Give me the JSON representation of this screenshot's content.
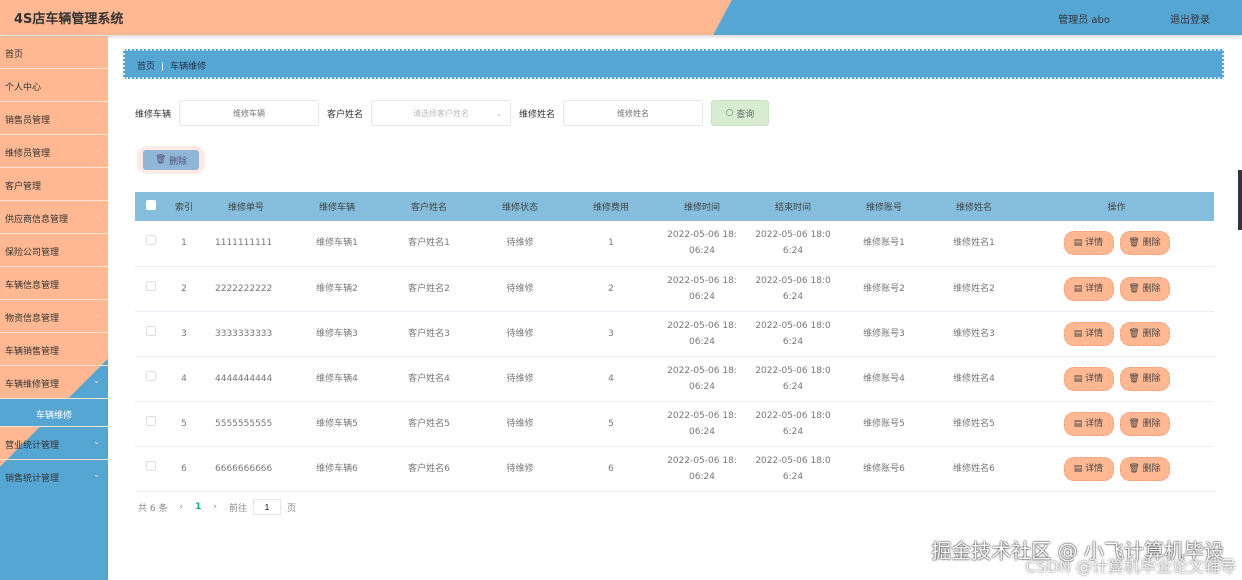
{
  "header": {
    "title": "4S店车辆管理系统",
    "user": "管理员 abo",
    "logout": "退出登录"
  },
  "sidebar": {
    "items": [
      {
        "label": "首页",
        "chevron": false
      },
      {
        "label": "个人中心",
        "chevron": true
      },
      {
        "label": "销售员管理",
        "chevron": true
      },
      {
        "label": "维修员管理",
        "chevron": true
      },
      {
        "label": "客户管理",
        "chevron": true
      },
      {
        "label": "供应商信息管理",
        "chevron": true
      },
      {
        "label": "保险公司管理",
        "chevron": true
      },
      {
        "label": "车辆信息管理",
        "chevron": true
      },
      {
        "label": "物资信息管理",
        "chevron": true
      },
      {
        "label": "车辆销售管理",
        "chevron": true
      },
      {
        "label": "车辆维修管理",
        "chevron": true
      }
    ],
    "active_sub": "车辆维修",
    "items_after": [
      {
        "label": "营业统计管理"
      },
      {
        "label": "销售统计管理"
      }
    ]
  },
  "breadcrumb": {
    "home": "首页",
    "current": "车辆维修"
  },
  "search": {
    "vehicle_label": "维修车辆",
    "vehicle_placeholder": "维修车辆",
    "customer_label": "客户姓名",
    "customer_placeholder": "请选择客户姓名",
    "repair_name_label": "维修姓名",
    "repair_name_placeholder": "维修姓名",
    "query": "查询"
  },
  "toolbar": {
    "delete": "删除"
  },
  "table": {
    "headers": [
      "索引",
      "维修单号",
      "维修车辆",
      "客户姓名",
      "维修状态",
      "维修费用",
      "维修时间",
      "结束时间",
      "维修账号",
      "维修姓名",
      "操作"
    ],
    "rows": [
      [
        "1",
        "1111111111",
        "维修车辆1",
        "客户姓名1",
        "待维修",
        "1",
        "2022-05-06 18:06:24",
        "2022-05-06 18:06:24",
        "维修账号1",
        "维修姓名1"
      ],
      [
        "2",
        "2222222222",
        "维修车辆2",
        "客户姓名2",
        "待维修",
        "2",
        "2022-05-06 18:06:24",
        "2022-05-06 18:06:24",
        "维修账号2",
        "维修姓名2"
      ],
      [
        "3",
        "3333333333",
        "维修车辆3",
        "客户姓名3",
        "待维修",
        "3",
        "2022-05-06 18:06:24",
        "2022-05-06 18:06:24",
        "维修账号3",
        "维修姓名3"
      ],
      [
        "4",
        "4444444444",
        "维修车辆4",
        "客户姓名4",
        "待维修",
        "4",
        "2022-05-06 18:06:24",
        "2022-05-06 18:06:24",
        "维修账号4",
        "维修姓名4"
      ],
      [
        "5",
        "5555555555",
        "维修车辆5",
        "客户姓名5",
        "待维修",
        "5",
        "2022-05-06 18:06:24",
        "2022-05-06 18:06:24",
        "维修账号5",
        "维修姓名5"
      ],
      [
        "6",
        "6666666666",
        "维修车辆6",
        "客户姓名6",
        "待维修",
        "6",
        "2022-05-06 18:06:24",
        "2022-05-06 18:06:24",
        "维修账号6",
        "维修姓名6"
      ]
    ],
    "detail": "详情",
    "delete": "删除"
  },
  "pagination": {
    "total": "共 6 条",
    "page": "1",
    "goto": "前往",
    "goto_value": "1",
    "page_unit": "页"
  },
  "watermark": {
    "line1": "掘金技术社区 @ 小飞计算机毕设",
    "line2": "CSDN @计算机毕业论文辅导"
  },
  "colors": {
    "peach": "#FFB892",
    "blue": "#56A6D4",
    "table_header": "#85BEDD",
    "query_button": "#D7ECD1"
  }
}
